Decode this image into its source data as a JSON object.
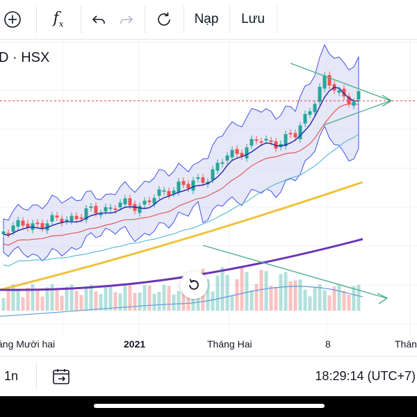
{
  "toolbar": {
    "add_icon": "plus-circle-icon",
    "indicator_icon": "fx-icon",
    "indicator_label": "f",
    "indicator_sub": "x",
    "undo_icon": "undo-icon",
    "redo_icon": "redo-icon",
    "reload_icon": "refresh-icon",
    "load_label": "Nạp",
    "save_label": "Lưu"
  },
  "chart": {
    "symbol": "D · HSX",
    "x_axis_labels": [
      "áng Mười hai",
      "2021",
      "Tháng Hai",
      "8",
      "Thán"
    ],
    "reset_icon": "reset-view-icon",
    "colors": {
      "up": "#26a69a",
      "down": "#ef5350",
      "band_fill": "#d1d4f0",
      "band_line": "#3f51e8",
      "ma_fast": "#1e22aa",
      "ma_mid": "#e05b5b",
      "ma_light": "#5bbcd8",
      "ma_yellow": "#f0c23b",
      "ma_purple": "#6a35b6",
      "trend": "#4caf8a",
      "price_line": "#e53935",
      "volume_ma": "#5b9bd8"
    }
  },
  "bottombar": {
    "interval_label": "1n",
    "date_range_icon": "calendar-range-icon",
    "time_label": "18:29:14 (UTC+7)"
  }
}
